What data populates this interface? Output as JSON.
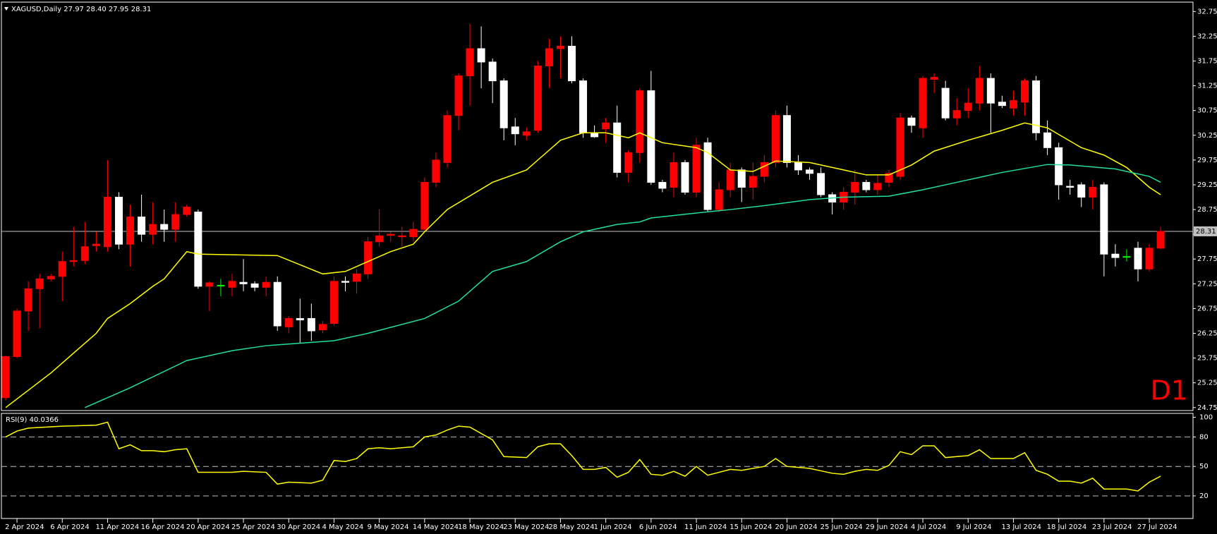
{
  "chart_data": [
    {
      "type": "candlestick",
      "title": "XAGUSD,Daily  27.97 28.40 27.95 28.31",
      "categories": [
        null,
        "2 Apr 2024",
        null,
        null,
        null,
        "6 Apr 2024",
        null,
        null,
        null,
        "11 Apr 2024",
        null,
        null,
        null,
        "16 Apr 2024",
        null,
        null,
        null,
        "20 Apr 2024",
        null,
        null,
        null,
        "25 Apr 2024",
        null,
        null,
        null,
        "30 Apr 2024",
        null,
        null,
        null,
        "4 May 2024",
        null,
        null,
        null,
        "9 May 2024",
        null,
        null,
        null,
        "14 May 2024",
        null,
        null,
        null,
        "18 May 2024",
        null,
        null,
        null,
        "23 May 2024",
        null,
        null,
        null,
        "28 May 2024",
        null,
        null,
        null,
        "1 Jun 2024",
        null,
        null,
        null,
        "6 Jun 2024",
        null,
        null,
        null,
        "11 Jun 2024",
        null,
        null,
        null,
        "15 Jun 2024",
        null,
        null,
        null,
        "20 Jun 2024",
        null,
        null,
        null,
        "25 Jun 2024",
        null,
        null,
        null,
        "29 Jun 2024",
        null,
        null,
        null,
        "4 Jul 2024",
        null,
        null,
        null,
        "9 Jul 2024",
        null,
        null,
        null,
        "13 Jul 2024",
        null,
        null,
        null,
        "18 Jul 2024",
        null,
        null,
        null,
        "23 Jul 2024",
        null,
        null,
        null,
        "27 Jul 2024",
        null
      ],
      "open": [
        24.95,
        25.78,
        26.7,
        27.15,
        27.35,
        27.4,
        27.7,
        27.72,
        28.02,
        28.0,
        29.0,
        28.05,
        28.6,
        28.25,
        28.45,
        28.35,
        28.65,
        28.7,
        27.2,
        27.22,
        27.18,
        27.28,
        27.25,
        27.18,
        27.28,
        26.38,
        26.55,
        26.55,
        26.32,
        26.45,
        27.3,
        27.3,
        27.45,
        28.1,
        28.23,
        28.2,
        28.2,
        28.35,
        29.3,
        29.7,
        30.65,
        31.45,
        32.0,
        31.73,
        31.35,
        30.42,
        30.25,
        30.35,
        31.65,
        32.0,
        32.05,
        31.35,
        30.3,
        30.38,
        30.5,
        29.5,
        29.9,
        31.15,
        29.3,
        29.2,
        29.7,
        29.1,
        30.1,
        28.75,
        29.15,
        29.55,
        29.2,
        29.42,
        29.7,
        30.65,
        29.7,
        29.55,
        29.48,
        29.05,
        28.9,
        29.1,
        29.3,
        29.15,
        29.3,
        29.42,
        30.6,
        30.4,
        31.38,
        31.2,
        30.6,
        30.75,
        30.9,
        31.4,
        30.92,
        30.8,
        30.92,
        31.35,
        30.3,
        30.0,
        29.22,
        29.25,
        29.0,
        29.25,
        27.85,
        27.8,
        27.97,
        27.55,
        27.97
      ],
      "high": [
        25.8,
        26.75,
        27.3,
        27.45,
        27.45,
        27.9,
        28.4,
        28.5,
        28.3,
        29.75,
        29.1,
        28.85,
        29.05,
        28.9,
        28.75,
        28.9,
        28.85,
        28.75,
        27.3,
        27.35,
        27.45,
        27.75,
        27.3,
        27.4,
        27.4,
        26.6,
        26.95,
        26.85,
        26.5,
        27.4,
        27.4,
        27.55,
        28.2,
        28.75,
        28.3,
        28.4,
        28.5,
        29.4,
        29.9,
        30.75,
        31.5,
        32.5,
        32.45,
        31.8,
        31.4,
        30.6,
        30.4,
        31.75,
        32.2,
        32.25,
        32.25,
        31.4,
        30.45,
        30.6,
        30.85,
        29.95,
        31.2,
        31.55,
        29.35,
        29.9,
        29.75,
        30.2,
        30.2,
        29.3,
        29.7,
        29.6,
        29.7,
        29.85,
        30.75,
        30.85,
        29.85,
        29.6,
        29.6,
        29.1,
        29.2,
        29.55,
        29.35,
        29.45,
        29.55,
        30.7,
        30.65,
        31.45,
        31.5,
        31.35,
        31.0,
        31.2,
        31.65,
        31.5,
        31.05,
        31.15,
        31.4,
        31.45,
        30.55,
        30.1,
        29.35,
        29.3,
        29.35,
        29.3,
        28.05,
        27.95,
        28.1,
        28.05,
        28.4
      ],
      "low": [
        24.9,
        25.75,
        26.3,
        26.35,
        27.3,
        26.9,
        27.6,
        27.65,
        27.9,
        27.9,
        27.95,
        27.6,
        28.1,
        28.05,
        28.1,
        28.1,
        28.6,
        27.15,
        26.7,
        27.0,
        27.0,
        27.1,
        27.1,
        27.0,
        26.3,
        26.25,
        26.05,
        26.1,
        26.25,
        26.4,
        27.1,
        27.05,
        27.35,
        28.0,
        28.1,
        28.0,
        28.1,
        28.3,
        29.2,
        29.6,
        30.35,
        30.85,
        31.2,
        30.9,
        30.15,
        30.05,
        30.15,
        30.3,
        31.2,
        31.4,
        31.3,
        30.2,
        30.2,
        30.1,
        29.4,
        29.3,
        29.7,
        29.25,
        29.1,
        29.0,
        29.05,
        29.0,
        28.7,
        28.7,
        29.0,
        28.9,
        28.95,
        29.3,
        29.6,
        29.6,
        29.45,
        29.35,
        29.0,
        28.65,
        28.75,
        28.85,
        29.1,
        29.05,
        29.2,
        29.35,
        30.3,
        30.2,
        31.1,
        30.55,
        30.45,
        30.6,
        30.75,
        30.3,
        30.8,
        30.65,
        30.65,
        30.15,
        29.85,
        28.95,
        29.05,
        28.8,
        28.75,
        27.4,
        27.6,
        27.7,
        27.3,
        27.5,
        27.95
      ],
      "close": [
        25.78,
        26.7,
        27.15,
        27.35,
        27.4,
        27.7,
        27.72,
        28.0,
        28.05,
        29.0,
        28.05,
        28.6,
        28.25,
        28.45,
        28.35,
        28.65,
        28.8,
        27.2,
        27.27,
        27.22,
        27.3,
        27.25,
        27.18,
        27.28,
        26.4,
        26.55,
        26.52,
        26.3,
        26.43,
        27.3,
        27.28,
        27.45,
        28.1,
        28.22,
        28.25,
        28.22,
        28.35,
        29.3,
        29.75,
        30.65,
        31.45,
        32.0,
        31.73,
        31.35,
        30.4,
        30.28,
        30.32,
        31.65,
        32.0,
        32.05,
        31.35,
        30.3,
        30.22,
        30.5,
        29.5,
        29.9,
        31.15,
        29.3,
        29.18,
        29.7,
        29.1,
        30.05,
        28.75,
        29.15,
        29.55,
        29.2,
        29.42,
        29.7,
        30.65,
        29.7,
        29.55,
        29.48,
        29.05,
        28.9,
        29.1,
        29.3,
        29.15,
        29.28,
        29.48,
        30.6,
        30.45,
        31.4,
        31.42,
        30.6,
        30.75,
        30.9,
        31.4,
        30.9,
        30.85,
        30.95,
        31.35,
        30.3,
        30.0,
        29.25,
        29.2,
        29.0,
        29.2,
        27.85,
        27.78,
        27.8,
        27.55,
        27.97,
        28.31
      ],
      "up_color": "#ff0000",
      "down_color": "#ffffff",
      "doji_color": "#00ff00",
      "ylim": [
        24.69,
        32.94
      ],
      "yticks": [
        24.75,
        25.25,
        25.75,
        26.25,
        26.75,
        27.25,
        27.75,
        28.25,
        28.75,
        29.25,
        29.75,
        30.25,
        30.75,
        31.25,
        31.75,
        32.25,
        32.75
      ],
      "last_price": 28.31,
      "last_price_color": "#c0c0c0",
      "annotation": "D1",
      "annotation_color": "#ff0000",
      "lines": [
        {
          "color": "#ffff00",
          "x": [
            0,
            4,
            8,
            9,
            11,
            13,
            14,
            16,
            17,
            24,
            28,
            30,
            34,
            36,
            37,
            39,
            43,
            46,
            49,
            51,
            53,
            55,
            56,
            58,
            61,
            62,
            64,
            66,
            68,
            71,
            74,
            76,
            78,
            80,
            82,
            85,
            88,
            90,
            92,
            95,
            97,
            99,
            101,
            102
          ],
          "values": [
            24.75,
            25.45,
            26.25,
            26.55,
            26.85,
            27.2,
            27.35,
            27.9,
            27.85,
            27.82,
            27.45,
            27.5,
            27.9,
            28.05,
            28.3,
            28.75,
            29.3,
            29.55,
            30.15,
            30.3,
            30.3,
            30.2,
            30.3,
            30.1,
            30.0,
            29.9,
            29.55,
            29.52,
            29.73,
            29.7,
            29.55,
            29.45,
            29.45,
            29.65,
            29.93,
            30.15,
            30.35,
            30.5,
            30.4,
            30.0,
            29.85,
            29.6,
            29.2,
            29.05
          ]
        },
        {
          "color": "#20e0a0",
          "x": [
            7,
            11,
            16,
            20,
            23,
            29,
            32,
            37,
            40,
            43,
            46,
            49,
            51,
            54,
            56,
            57,
            61,
            64,
            67,
            71,
            74,
            78,
            81,
            85,
            88,
            92,
            94,
            98,
            101,
            102
          ],
          "values": [
            24.75,
            25.15,
            25.7,
            25.9,
            26.0,
            26.1,
            26.25,
            26.55,
            26.9,
            27.5,
            27.7,
            28.1,
            28.3,
            28.45,
            28.5,
            28.58,
            28.68,
            28.75,
            28.83,
            28.95,
            29.0,
            29.02,
            29.15,
            29.35,
            29.5,
            29.66,
            29.65,
            29.57,
            29.42,
            29.3
          ]
        }
      ]
    },
    {
      "type": "line",
      "title": "RSI(9) 40.0366",
      "color": "#ffff00",
      "x": [
        0,
        1,
        2,
        5,
        8,
        9,
        10,
        11,
        12,
        13,
        14,
        15,
        16,
        17,
        20,
        21,
        23,
        24,
        25,
        27,
        28,
        29,
        30,
        31,
        32,
        33,
        34,
        36,
        37,
        38,
        39,
        40,
        41,
        43,
        44,
        46,
        47,
        48,
        49,
        50,
        51,
        52,
        53,
        54,
        55,
        56,
        57,
        58,
        59,
        60,
        61,
        62,
        64,
        65,
        67,
        68,
        69,
        71,
        73,
        74,
        75,
        76,
        77,
        78,
        79,
        80,
        81,
        82,
        83,
        84,
        85,
        86,
        87,
        89,
        90,
        91,
        92,
        93,
        94,
        95,
        96,
        97,
        98,
        99,
        100,
        101,
        102
      ],
      "values": [
        80,
        86,
        89,
        91,
        92,
        95,
        68,
        72,
        66,
        66,
        65,
        67,
        68,
        44,
        44,
        45,
        44,
        32,
        34,
        33,
        36,
        56,
        55,
        58,
        68,
        69,
        68,
        70,
        80,
        82,
        87,
        91,
        90,
        77,
        60,
        59,
        70,
        73,
        73,
        61,
        47,
        47,
        49,
        39,
        44,
        57,
        42,
        41,
        45,
        40,
        50,
        41,
        47,
        46,
        50,
        58,
        50,
        48,
        43,
        42,
        45,
        47,
        46,
        51,
        65,
        62,
        71,
        71,
        59,
        60,
        61,
        67,
        58,
        58,
        64,
        46,
        42,
        35,
        35,
        33,
        38,
        27,
        27,
        27,
        25,
        34,
        40.0366
      ],
      "ylim": [
        -3,
        104
      ],
      "yticks": [
        20,
        50,
        80,
        100
      ],
      "levels": [
        20,
        50,
        80
      ],
      "level_color": "#c0c0c0"
    }
  ]
}
